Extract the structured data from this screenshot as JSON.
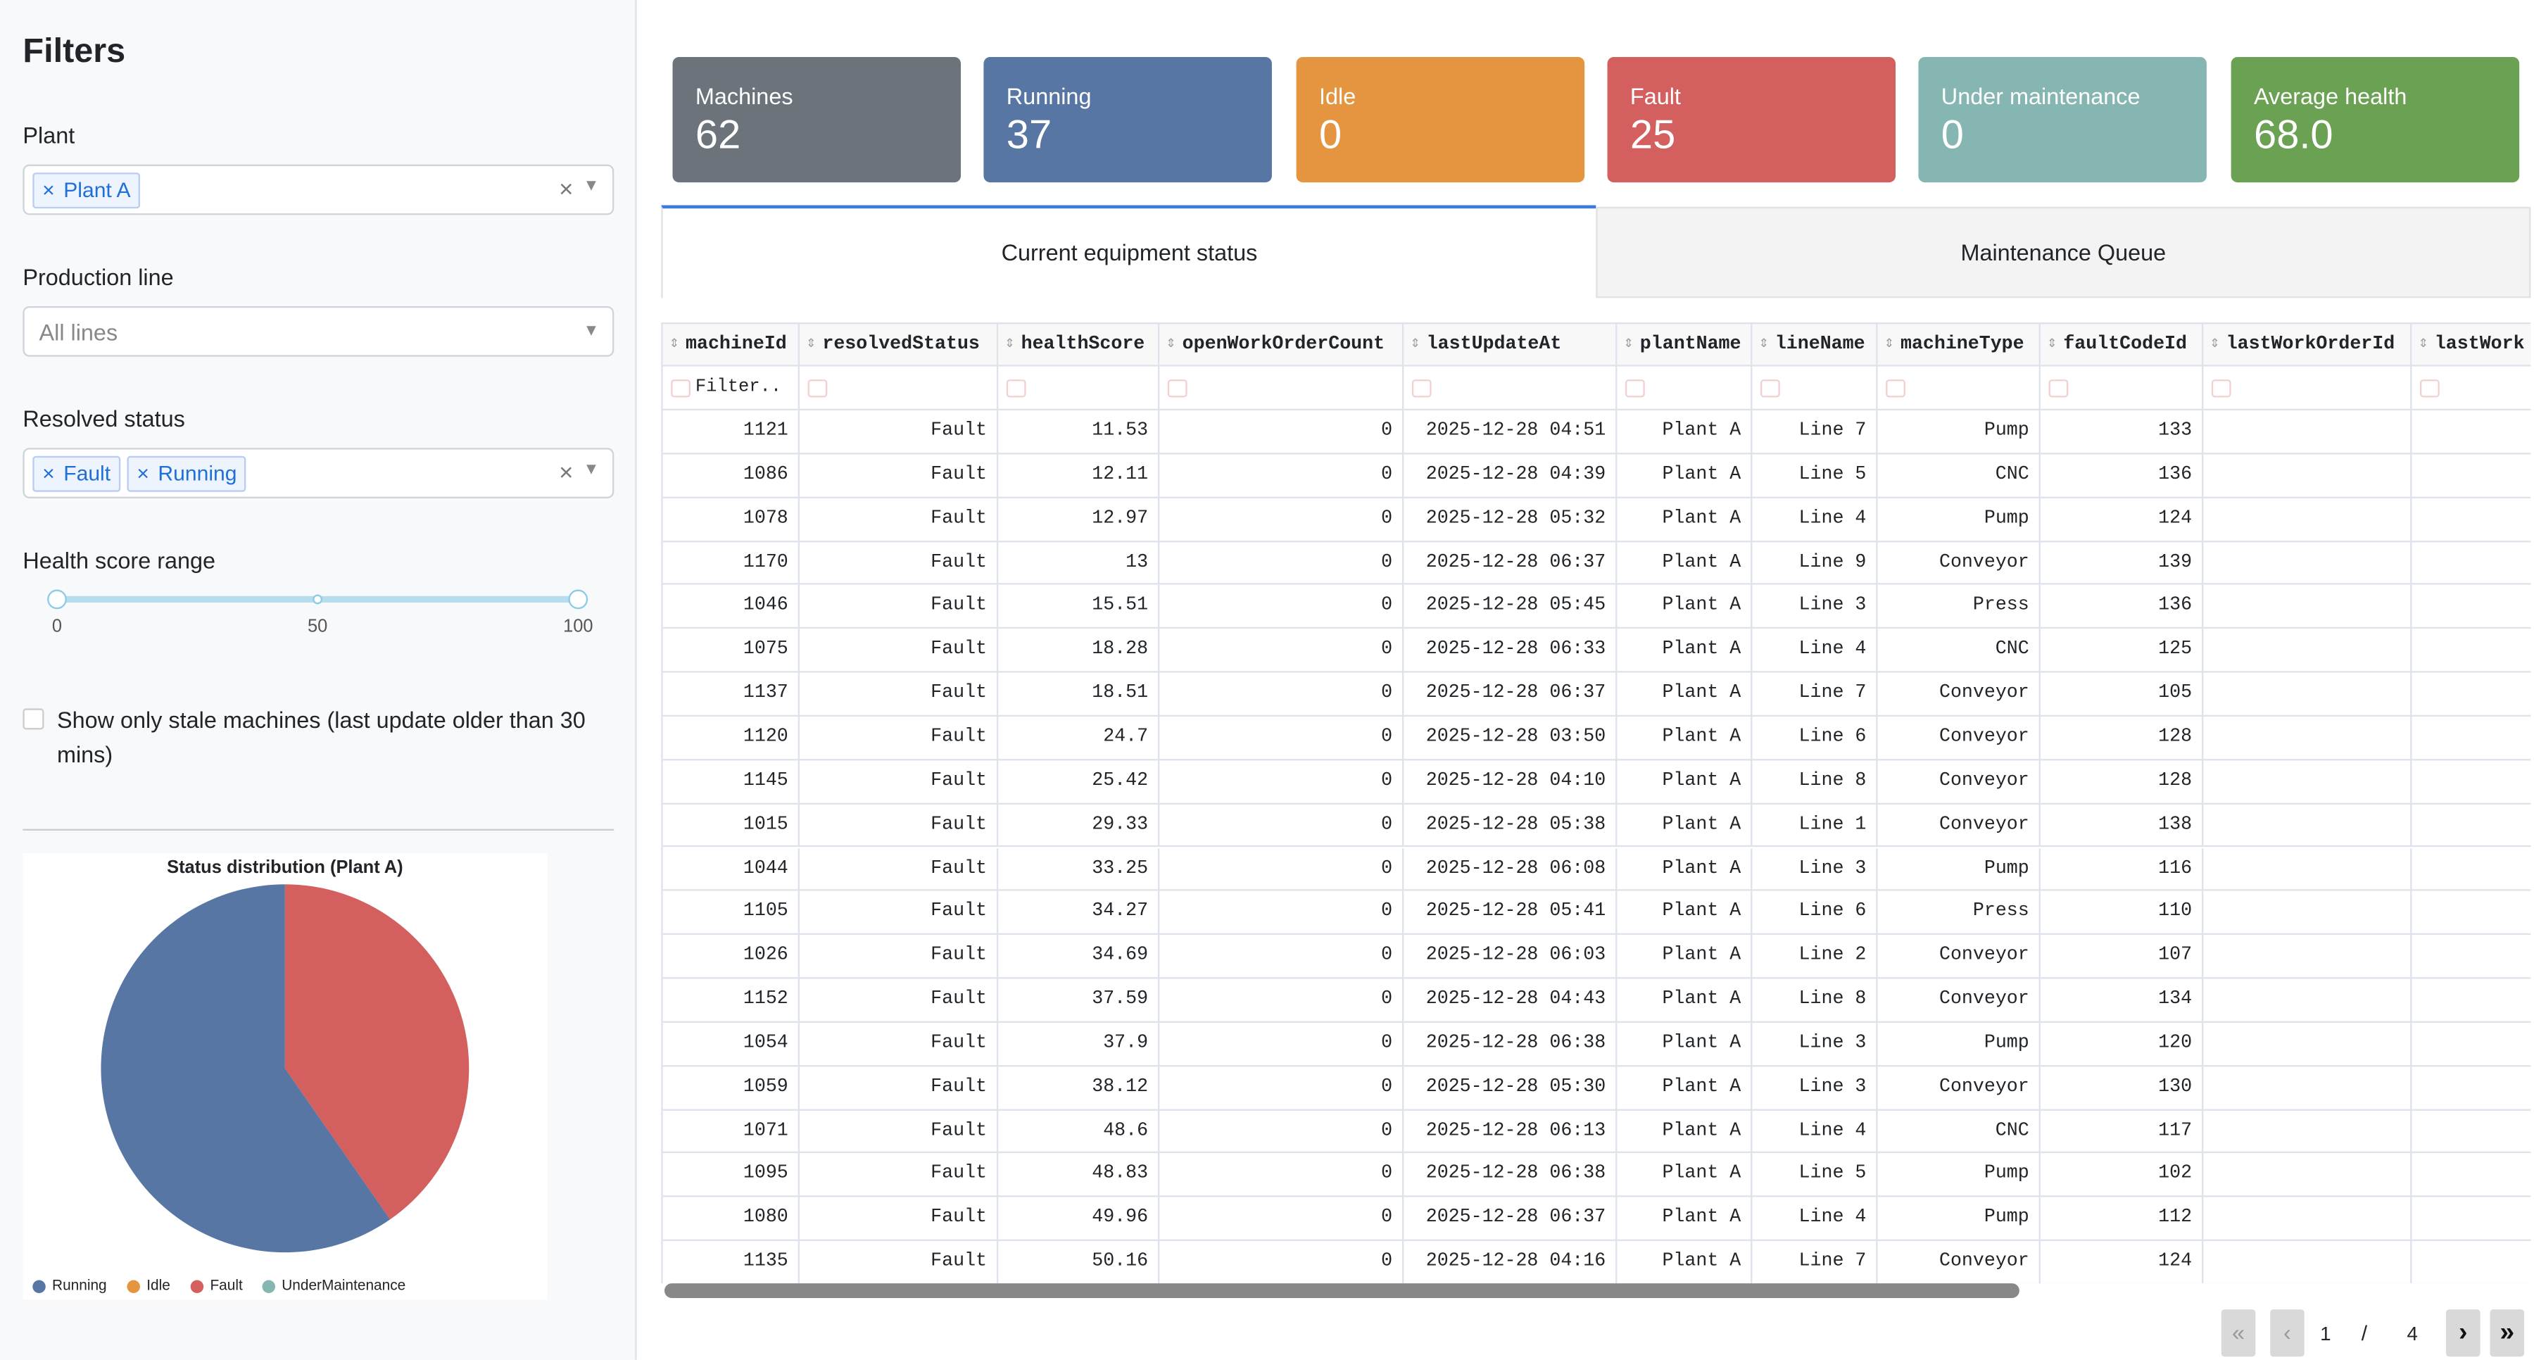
{
  "sidebar": {
    "title": "Filters",
    "plant": {
      "label": "Plant",
      "tags": [
        "Plant A"
      ]
    },
    "production_line": {
      "label": "Production line",
      "placeholder": "All lines"
    },
    "resolved_status": {
      "label": "Resolved status",
      "tags": [
        "Fault",
        "Running"
      ]
    },
    "health_score": {
      "label": "Health score range",
      "ticks": [
        0,
        50,
        100
      ]
    },
    "stale_checkbox": {
      "label": "Show only stale machines (last update older than 30 mins)"
    }
  },
  "kpis": [
    {
      "label": "Machines",
      "value": 62,
      "color": "#6c737b"
    },
    {
      "label": "Running",
      "value": 37,
      "color": "#5876a4"
    },
    {
      "label": "Idle",
      "value": 0,
      "color": "#e5953f"
    },
    {
      "label": "Fault",
      "value": 25,
      "color": "#d35f5f"
    },
    {
      "label": "Under maintenance",
      "value": 0,
      "color": "#86b6b2"
    },
    {
      "label": "Average health",
      "value": "68.0",
      "color": "#6aa152"
    }
  ],
  "tabs": [
    "Current equipment status",
    "Maintenance Queue"
  ],
  "table": {
    "columns": [
      "machineId",
      "resolvedStatus",
      "healthScore",
      "openWorkOrderCount",
      "lastUpdateAt",
      "plantName",
      "lineName",
      "machineType",
      "faultCodeId",
      "lastWorkOrderId",
      "lastWork"
    ],
    "filter_placeholder": "Filter..",
    "rows": [
      [
        1121,
        "Fault",
        11.53,
        0,
        "2025-12-28 04:51",
        "Plant A",
        "Line 7",
        "Pump",
        133,
        null,
        null
      ],
      [
        1086,
        "Fault",
        12.11,
        0,
        "2025-12-28 04:39",
        "Plant A",
        "Line 5",
        "CNC",
        136,
        null,
        null
      ],
      [
        1078,
        "Fault",
        12.97,
        0,
        "2025-12-28 05:32",
        "Plant A",
        "Line 4",
        "Pump",
        124,
        null,
        null
      ],
      [
        1170,
        "Fault",
        13,
        0,
        "2025-12-28 06:37",
        "Plant A",
        "Line 9",
        "Conveyor",
        139,
        null,
        null
      ],
      [
        1046,
        "Fault",
        15.51,
        0,
        "2025-12-28 05:45",
        "Plant A",
        "Line 3",
        "Press",
        136,
        null,
        null
      ],
      [
        1075,
        "Fault",
        18.28,
        0,
        "2025-12-28 06:33",
        "Plant A",
        "Line 4",
        "CNC",
        125,
        null,
        null
      ],
      [
        1137,
        "Fault",
        18.51,
        0,
        "2025-12-28 06:37",
        "Plant A",
        "Line 7",
        "Conveyor",
        105,
        null,
        null
      ],
      [
        1120,
        "Fault",
        24.7,
        0,
        "2025-12-28 03:50",
        "Plant A",
        "Line 6",
        "Conveyor",
        128,
        null,
        null
      ],
      [
        1145,
        "Fault",
        25.42,
        0,
        "2025-12-28 04:10",
        "Plant A",
        "Line 8",
        "Conveyor",
        128,
        null,
        null
      ],
      [
        1015,
        "Fault",
        29.33,
        0,
        "2025-12-28 05:38",
        "Plant A",
        "Line 1",
        "Conveyor",
        138,
        null,
        null
      ],
      [
        1044,
        "Fault",
        33.25,
        0,
        "2025-12-28 06:08",
        "Plant A",
        "Line 3",
        "Pump",
        116,
        null,
        null
      ],
      [
        1105,
        "Fault",
        34.27,
        0,
        "2025-12-28 05:41",
        "Plant A",
        "Line 6",
        "Press",
        110,
        null,
        null
      ],
      [
        1026,
        "Fault",
        34.69,
        0,
        "2025-12-28 06:03",
        "Plant A",
        "Line 2",
        "Conveyor",
        107,
        null,
        null
      ],
      [
        1152,
        "Fault",
        37.59,
        0,
        "2025-12-28 04:43",
        "Plant A",
        "Line 8",
        "Conveyor",
        134,
        null,
        null
      ],
      [
        1054,
        "Fault",
        37.9,
        0,
        "2025-12-28 06:38",
        "Plant A",
        "Line 3",
        "Pump",
        120,
        null,
        null
      ],
      [
        1059,
        "Fault",
        38.12,
        0,
        "2025-12-28 05:30",
        "Plant A",
        "Line 3",
        "Conveyor",
        130,
        null,
        null
      ],
      [
        1071,
        "Fault",
        48.6,
        0,
        "2025-12-28 06:13",
        "Plant A",
        "Line 4",
        "CNC",
        117,
        null,
        null
      ],
      [
        1095,
        "Fault",
        48.83,
        0,
        "2025-12-28 06:38",
        "Plant A",
        "Line 5",
        "Pump",
        102,
        null,
        null
      ],
      [
        1080,
        "Fault",
        49.96,
        0,
        "2025-12-28 06:37",
        "Plant A",
        "Line 4",
        "Pump",
        112,
        null,
        null
      ],
      [
        1135,
        "Fault",
        50.16,
        0,
        "2025-12-28 04:16",
        "Plant A",
        "Line 7",
        "Conveyor",
        124,
        null,
        null
      ]
    ]
  },
  "pagination": {
    "current": 1,
    "separator": "/",
    "total": 4
  },
  "chart_data": {
    "type": "pie",
    "title": "Status distribution (Plant A)",
    "categories": [
      "Running",
      "Idle",
      "Fault",
      "UnderMaintenance"
    ],
    "values": [
      37,
      0,
      25,
      0
    ],
    "colors": [
      "#5876a4",
      "#e5953f",
      "#d35f5f",
      "#86b6b2"
    ]
  }
}
